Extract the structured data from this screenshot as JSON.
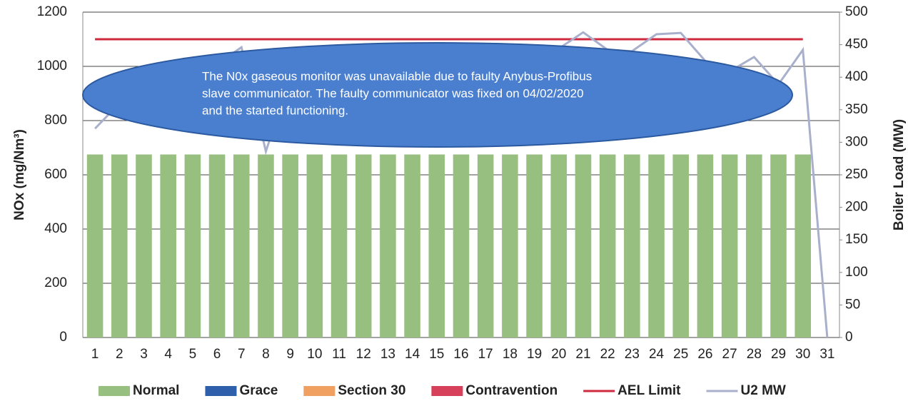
{
  "chart_data": {
    "type": "bar",
    "categories": [
      "1",
      "2",
      "3",
      "4",
      "5",
      "6",
      "7",
      "8",
      "9",
      "10",
      "11",
      "12",
      "13",
      "14",
      "15",
      "16",
      "17",
      "18",
      "19",
      "20",
      "21",
      "22",
      "23",
      "24",
      "25",
      "26",
      "27",
      "28",
      "29",
      "30",
      "31"
    ],
    "series": [
      {
        "name": "Normal",
        "color": "#97bf80",
        "values": [
          675,
          675,
          675,
          675,
          675,
          675,
          675,
          675,
          675,
          675,
          675,
          675,
          675,
          675,
          675,
          675,
          675,
          675,
          675,
          675,
          675,
          675,
          675,
          675,
          675,
          675,
          675,
          675,
          675,
          675,
          null
        ]
      },
      {
        "name": "Grace",
        "color": "#2e5faa",
        "values": [
          0,
          0,
          0,
          0,
          0,
          0,
          0,
          0,
          0,
          0,
          0,
          0,
          0,
          0,
          0,
          0,
          0,
          0,
          0,
          0,
          0,
          0,
          0,
          0,
          0,
          0,
          0,
          0,
          0,
          0,
          null
        ]
      },
      {
        "name": "Section 30",
        "color": "#f0a060",
        "values": [
          0,
          0,
          0,
          0,
          0,
          0,
          0,
          0,
          0,
          0,
          0,
          0,
          0,
          0,
          0,
          0,
          0,
          0,
          0,
          0,
          0,
          0,
          0,
          0,
          0,
          0,
          0,
          0,
          0,
          0,
          null
        ]
      },
      {
        "name": "Contravention",
        "color": "#d6405a",
        "values": [
          0,
          0,
          0,
          0,
          0,
          0,
          0,
          0,
          0,
          0,
          0,
          0,
          0,
          0,
          0,
          0,
          0,
          0,
          0,
          0,
          0,
          0,
          0,
          0,
          0,
          0,
          0,
          0,
          0,
          0,
          null
        ]
      },
      {
        "name": "AEL Limit",
        "type": "line",
        "color": "#d0283c",
        "values": [
          1100,
          1100,
          1100,
          1100,
          1100,
          1100,
          1100,
          1100,
          1100,
          1100,
          1100,
          1100,
          1100,
          1100,
          1100,
          1100,
          1100,
          1100,
          1100,
          1100,
          1100,
          1100,
          1100,
          1100,
          1100,
          1100,
          1100,
          1100,
          1100,
          1100,
          null
        ]
      },
      {
        "name": "U2 MW",
        "type": "line",
        "axis": "y2",
        "color": "#a8b0cc",
        "values": [
          321,
          360,
          400,
          420,
          430,
          420,
          446,
          286,
          400,
          420,
          430,
          425,
          435,
          430,
          440,
          430,
          435,
          440,
          430,
          444,
          469,
          442,
          440,
          466,
          468,
          425,
          409,
          431,
          389,
          442,
          0
        ]
      }
    ],
    "ylabel": "NOx (mg/Nm³)",
    "y2label": "Boiler Load (MW)",
    "ylim": [
      0,
      1200
    ],
    "yticks": [
      0,
      200,
      400,
      600,
      800,
      1000,
      1200
    ],
    "y2lim": [
      0,
      500
    ],
    "y2ticks": [
      0,
      50,
      100,
      150,
      200,
      250,
      300,
      350,
      400,
      450,
      500
    ],
    "grid": true,
    "legend": "bottom",
    "annotation": [
      "The N0x gaseous monitor was unavailable due to faulty Anybus-Profibus",
      "slave communicator. The faulty communicator was fixed on 04/02/2020",
      "and the started functioning."
    ]
  }
}
